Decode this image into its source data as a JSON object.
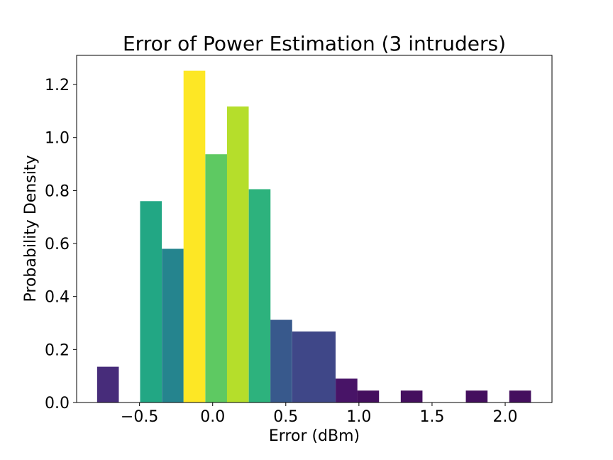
{
  "chart_data": {
    "type": "bar",
    "title": "Error of Power Estimation (3 intruders)",
    "xlabel": "Error (dBm)",
    "ylabel": "Probability Density",
    "xlim": [
      -0.93,
      2.32
    ],
    "ylim": [
      0.0,
      1.31
    ],
    "xticks": [
      -0.5,
      0.0,
      0.5,
      1.0,
      1.5,
      2.0
    ],
    "xtick_labels": [
      "−0.5",
      "0.0",
      "0.5",
      "1.0",
      "1.5",
      "2.0"
    ],
    "yticks": [
      0.0,
      0.2,
      0.4,
      0.6,
      0.8,
      1.0,
      1.2
    ],
    "ytick_labels": [
      "0.0",
      "0.2",
      "0.4",
      "0.6",
      "0.8",
      "1.0",
      "1.2"
    ],
    "grid": false,
    "legend": "none",
    "bin_width": 0.1485,
    "bins": [
      {
        "left": -0.79,
        "value": 0.135,
        "color": "#472c7a"
      },
      {
        "left": -0.496,
        "value": 0.76,
        "color": "#22a784"
      },
      {
        "left": -0.347,
        "value": 0.58,
        "color": "#25848e"
      },
      {
        "left": -0.199,
        "value": 1.252,
        "color": "#fde725"
      },
      {
        "left": -0.05,
        "value": 0.937,
        "color": "#5ec962"
      },
      {
        "left": 0.098,
        "value": 1.117,
        "color": "#b5de2b"
      },
      {
        "left": 0.247,
        "value": 0.805,
        "color": "#2db27d"
      },
      {
        "left": 0.395,
        "value": 0.312,
        "color": "#38598c"
      },
      {
        "left": 0.544,
        "value": 0.268,
        "color": "#3f4788"
      },
      {
        "left": 0.692,
        "value": 0.268,
        "color": "#3f4788"
      },
      {
        "left": 0.841,
        "value": 0.09,
        "color": "#481467"
      },
      {
        "left": 0.989,
        "value": 0.045,
        "color": "#440f5e"
      },
      {
        "left": 1.286,
        "value": 0.045,
        "color": "#440f5e"
      },
      {
        "left": 1.731,
        "value": 0.045,
        "color": "#440f5e"
      },
      {
        "left": 2.028,
        "value": 0.045,
        "color": "#440f5e"
      }
    ]
  }
}
